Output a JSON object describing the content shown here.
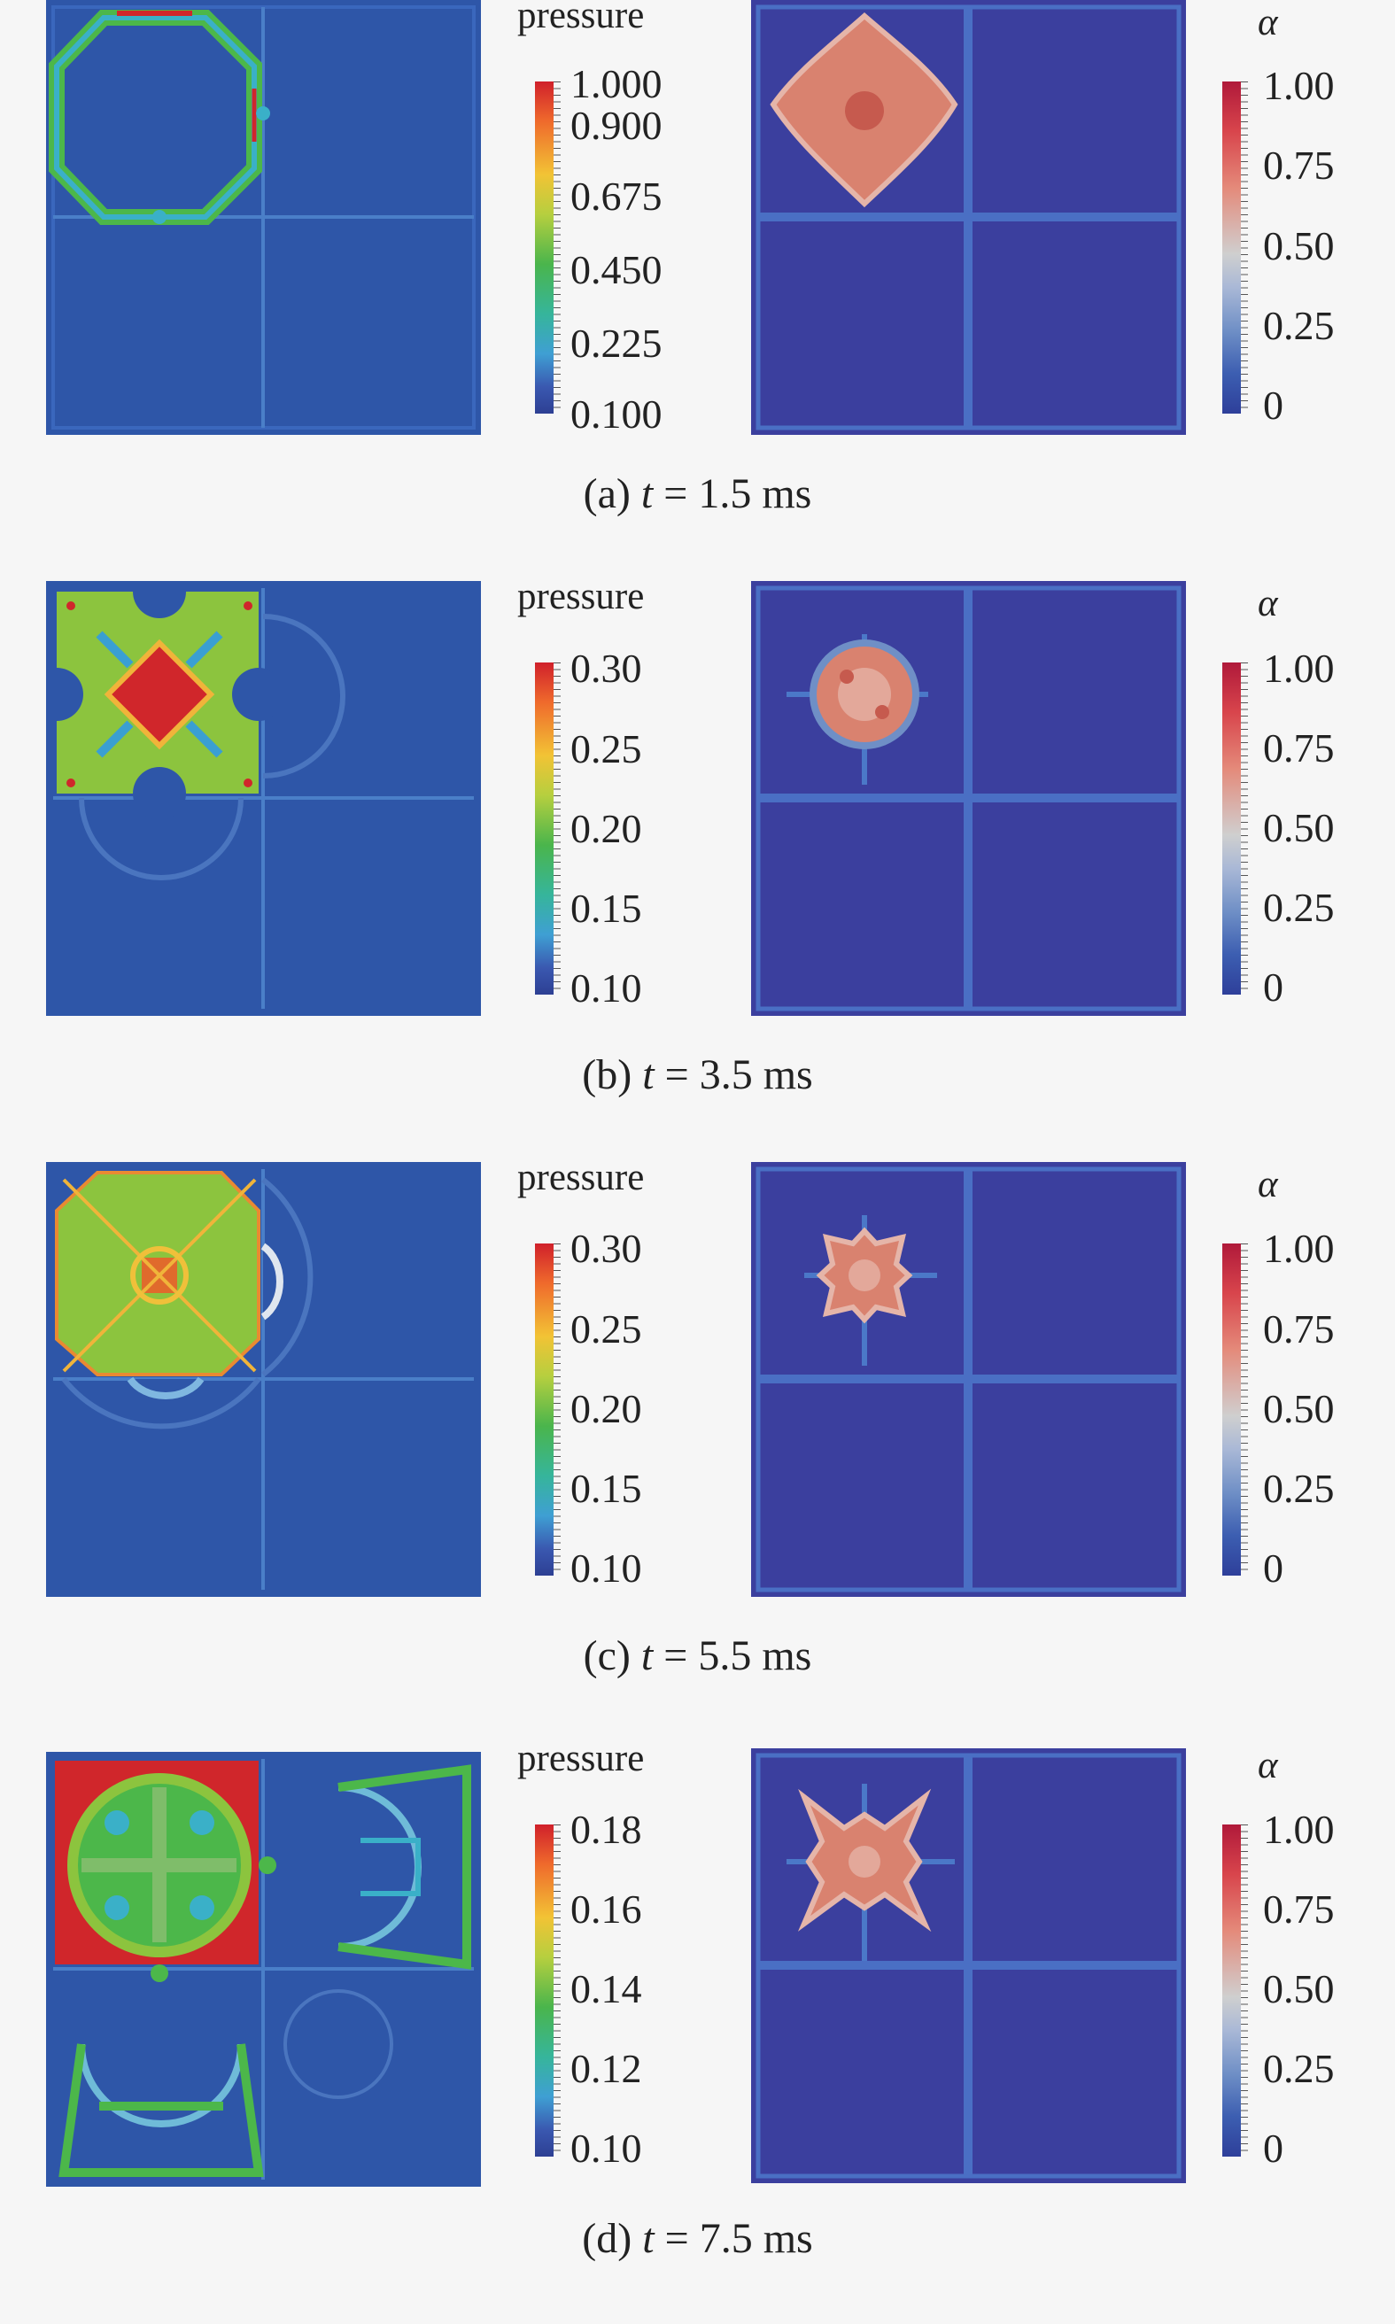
{
  "panels": [
    {
      "id": "a",
      "caption": {
        "label": "(a)",
        "var": "t",
        "eq": "=",
        "value": "1.5",
        "unit": "ms"
      },
      "pressure": {
        "title": "pressure",
        "ticks": [
          "1.000",
          "0.900",
          "0.675",
          "0.450",
          "0.225",
          "0.100"
        ]
      },
      "alpha": {
        "title": "α",
        "ticks": [
          "1.00",
          "0.75",
          "0.50",
          "0.25",
          "0"
        ]
      }
    },
    {
      "id": "b",
      "caption": {
        "label": "(b)",
        "var": "t",
        "eq": "=",
        "value": "3.5",
        "unit": "ms"
      },
      "pressure": {
        "title": "pressure",
        "ticks": [
          "0.30",
          "0.25",
          "0.20",
          "0.15",
          "0.10"
        ]
      },
      "alpha": {
        "title": "α",
        "ticks": [
          "1.00",
          "0.75",
          "0.50",
          "0.25",
          "0"
        ]
      }
    },
    {
      "id": "c",
      "caption": {
        "label": "(c)",
        "var": "t",
        "eq": "=",
        "value": "5.5",
        "unit": "ms"
      },
      "pressure": {
        "title": "pressure",
        "ticks": [
          "0.30",
          "0.25",
          "0.20",
          "0.15",
          "0.10"
        ]
      },
      "alpha": {
        "title": "α",
        "ticks": [
          "1.00",
          "0.75",
          "0.50",
          "0.25",
          "0"
        ]
      }
    },
    {
      "id": "d",
      "caption": {
        "label": "(d)",
        "var": "t",
        "eq": "=",
        "value": "7.5",
        "unit": "ms"
      },
      "pressure": {
        "title": "pressure",
        "ticks": [
          "0.18",
          "0.16",
          "0.14",
          "0.12",
          "0.10"
        ]
      },
      "alpha": {
        "title": "α",
        "ticks": [
          "1.00",
          "0.75",
          "0.50",
          "0.25",
          "0"
        ]
      }
    }
  ],
  "colors": {
    "field": "#2e56a8",
    "alpha_field": "#3b3f9e",
    "grid": "#4a7fc8",
    "green": "#4cb74a",
    "red": "#d0262b",
    "cyan": "#3ab0c8",
    "salmon": "#d9826f"
  }
}
